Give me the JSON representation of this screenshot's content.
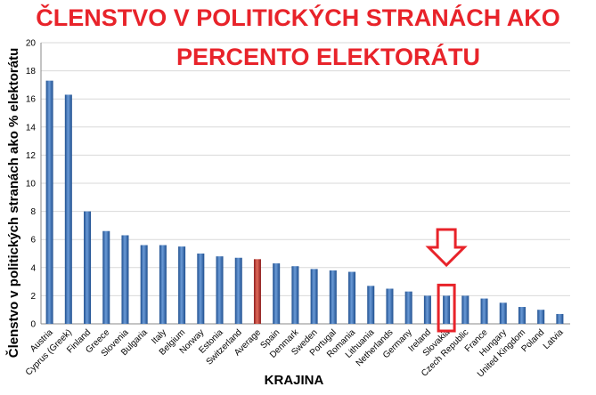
{
  "title_line1": "ČLENSTVO V POLITICKÝCH STRANÁCH AKO",
  "title_line2": "PERCENTO ELEKTORÁTU",
  "chart_data": {
    "type": "bar",
    "title": "ČLENSTVO V POLITICKÝCH STRANÁCH AKO PERCENTO ELEKTORÁTU",
    "xlabel": "KRAJINA",
    "ylabel": "Členstvo v politických stranách ako % elektorátu",
    "ylim": [
      0,
      20
    ],
    "yticks": [
      0,
      2,
      4,
      6,
      8,
      10,
      12,
      14,
      16,
      18,
      20
    ],
    "grid": true,
    "categories": [
      "Austria",
      "Cyprus (Greek)",
      "Finland",
      "Greece",
      "Slovenia",
      "Bulgaria",
      "Italy",
      "Belgium",
      "Norway",
      "Estonia",
      "Switzerland",
      "Average",
      "Spain",
      "Denmark",
      "Sweden",
      "Portugal",
      "Romania",
      "Lithuania",
      "Netherlands",
      "Germany",
      "Ireland",
      "Slovakia",
      "Czech Republic",
      "France",
      "Hungary",
      "United Kingdom",
      "Poland",
      "Latvia"
    ],
    "values": [
      17.3,
      16.3,
      8.0,
      6.6,
      6.3,
      5.6,
      5.6,
      5.5,
      5.0,
      4.8,
      4.7,
      4.6,
      4.3,
      4.1,
      3.9,
      3.8,
      3.7,
      2.7,
      2.5,
      2.3,
      2.0,
      2.0,
      2.0,
      1.8,
      1.5,
      1.2,
      1.0,
      0.7
    ],
    "bar_color": "#3a6fb5",
    "highlight_color": "#c0392b",
    "highlight_category": "Average",
    "marked_category": "Slovakia",
    "marker_color": "#e8232a"
  }
}
